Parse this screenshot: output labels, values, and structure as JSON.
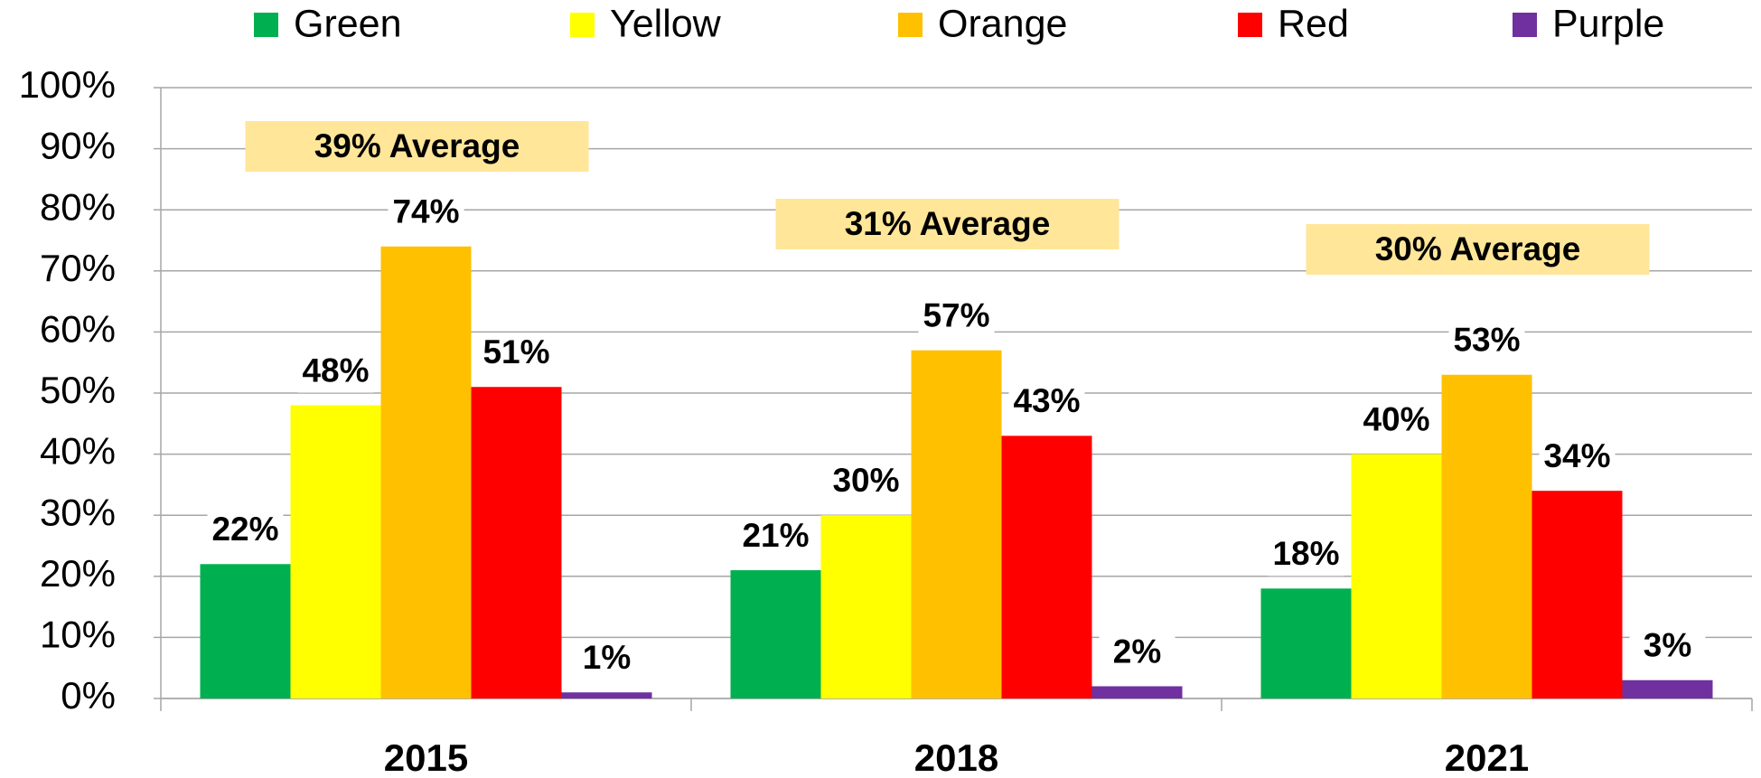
{
  "chart_data": {
    "type": "bar",
    "categories": [
      "2015",
      "2018",
      "2021"
    ],
    "series": [
      {
        "name": "Green",
        "color": "#00b050",
        "values": [
          22,
          21,
          18
        ],
        "value_labels": [
          "22%",
          "21%",
          "18%"
        ]
      },
      {
        "name": "Yellow",
        "color": "#ffff00",
        "values": [
          48,
          30,
          40
        ],
        "value_labels": [
          "48%",
          "30%",
          "40%"
        ]
      },
      {
        "name": "Orange",
        "color": "#ffc000",
        "values": [
          74,
          57,
          53
        ],
        "value_labels": [
          "74%",
          "57%",
          "53%"
        ]
      },
      {
        "name": "Red",
        "color": "#ff0000",
        "values": [
          51,
          43,
          34
        ],
        "value_labels": [
          "51%",
          "43%",
          "34%"
        ]
      },
      {
        "name": "Purple",
        "color": "#7030a0",
        "values": [
          1,
          2,
          3
        ],
        "value_labels": [
          "1%",
          "2%",
          "3%"
        ]
      }
    ],
    "annotations": [
      "39% Average",
      "31% Average",
      "30% Average"
    ],
    "ylim": [
      0,
      100
    ],
    "yticks": [
      {
        "value": 0,
        "label": "0%"
      },
      {
        "value": 10,
        "label": "10%"
      },
      {
        "value": 20,
        "label": "20%"
      },
      {
        "value": 30,
        "label": "30%"
      },
      {
        "value": 40,
        "label": "40%"
      },
      {
        "value": 50,
        "label": "50%"
      },
      {
        "value": 60,
        "label": "60%"
      },
      {
        "value": 70,
        "label": "70%"
      },
      {
        "value": 80,
        "label": "80%"
      },
      {
        "value": 90,
        "label": "90%"
      },
      {
        "value": 100,
        "label": "100%"
      }
    ],
    "grid": true,
    "legend": "top"
  }
}
